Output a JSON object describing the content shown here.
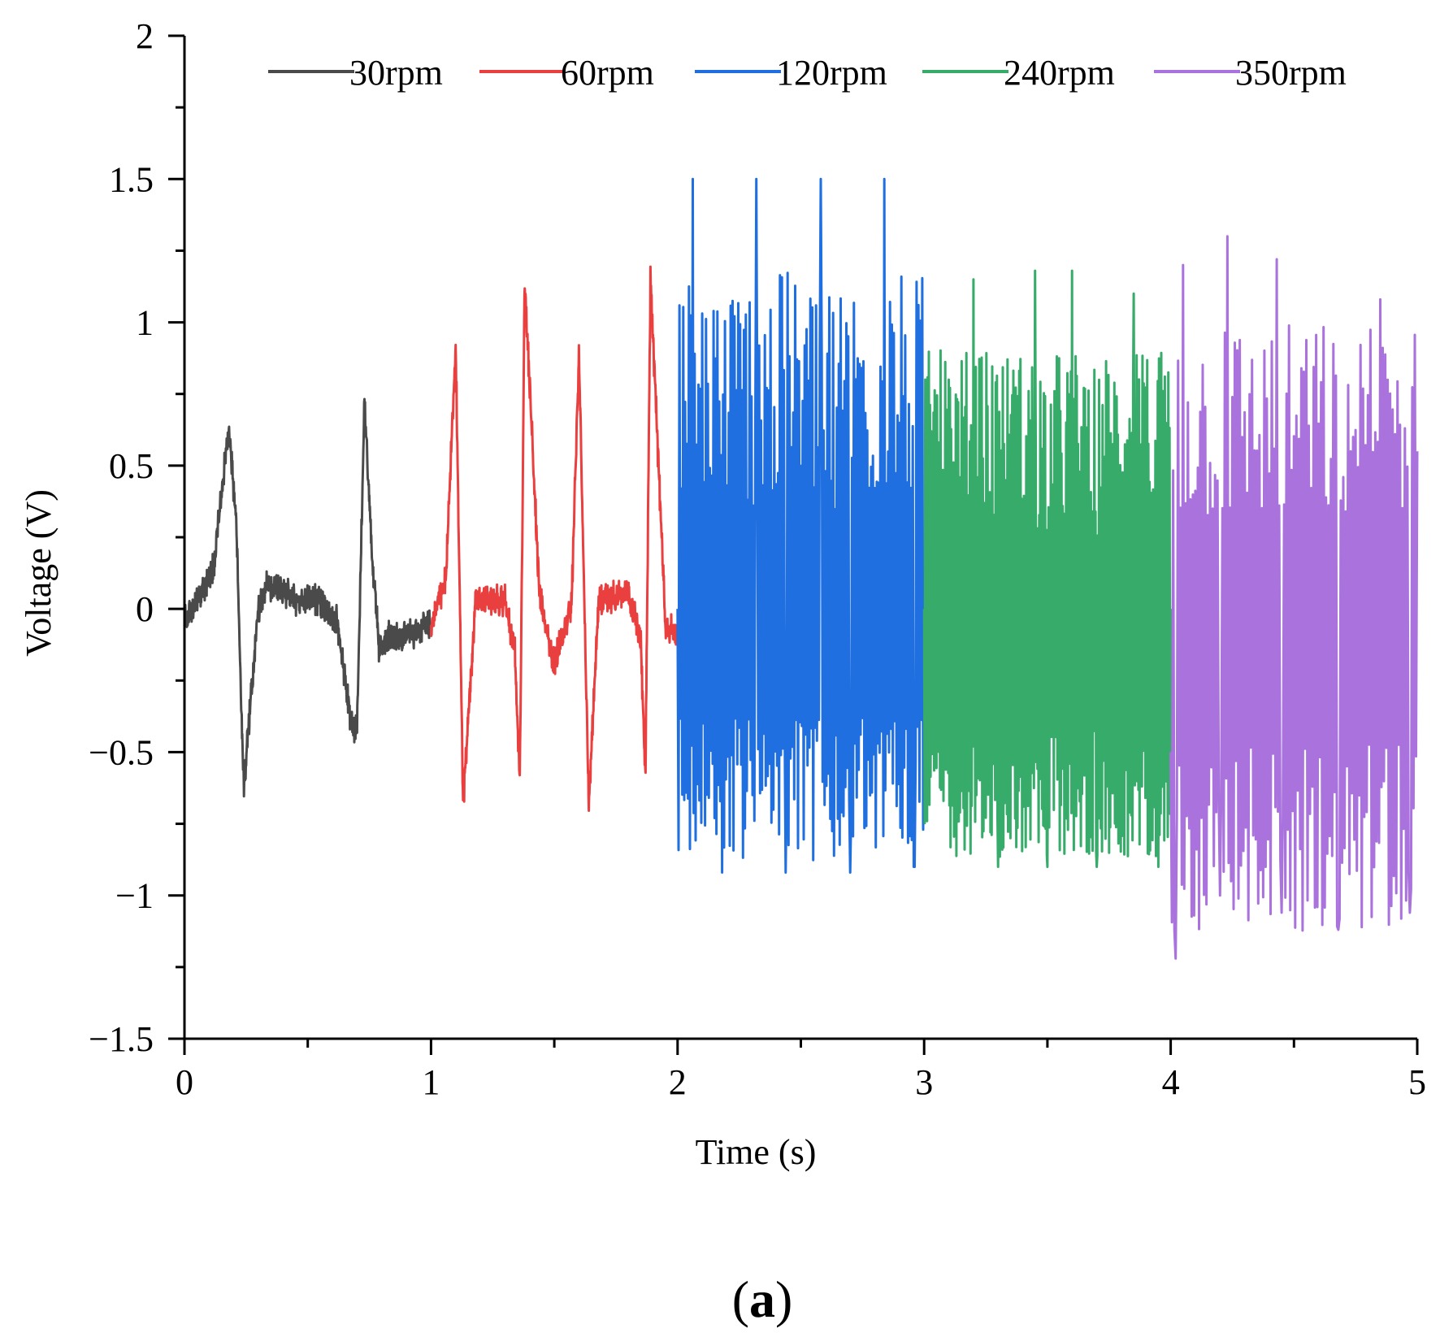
{
  "chart_data": {
    "type": "line",
    "title": "",
    "panel_label_open": "(",
    "panel_label_letter": "a",
    "panel_label_close": ")",
    "xlabel": "Time (s)",
    "ylabel": "Voltage (V)",
    "xlim": [
      0,
      5
    ],
    "ylim": [
      -1.5,
      2
    ],
    "x_ticks": [
      0,
      1,
      2,
      3,
      4,
      5
    ],
    "x_tick_labels": [
      "0",
      "1",
      "2",
      "3",
      "4",
      "5"
    ],
    "y_ticks": [
      -1.5,
      -1,
      -0.5,
      0,
      0.5,
      1,
      1.5,
      2
    ],
    "y_tick_labels": [
      "−1.5",
      "−1",
      "−0.5",
      "0",
      "0.5",
      "1",
      "1.5",
      "2"
    ],
    "grid": false,
    "legend_position": "top",
    "series": [
      {
        "name": "30rpm",
        "color": "#4a4a4a",
        "t_range": [
          0,
          1
        ],
        "keypoints": [
          [
            0,
            -0.05
          ],
          [
            0.12,
            0.15
          ],
          [
            0.18,
            0.64
          ],
          [
            0.21,
            0.3
          ],
          [
            0.24,
            -0.62
          ],
          [
            0.3,
            0.0
          ],
          [
            0.34,
            0.09
          ],
          [
            0.45,
            0.03
          ],
          [
            0.55,
            0.03
          ],
          [
            0.62,
            -0.05
          ],
          [
            0.68,
            -0.42
          ],
          [
            0.7,
            -0.42
          ],
          [
            0.73,
            0.74
          ],
          [
            0.76,
            0.2
          ],
          [
            0.79,
            -0.15
          ],
          [
            0.82,
            -0.1
          ],
          [
            0.9,
            -0.1
          ],
          [
            1.0,
            -0.05
          ]
        ]
      },
      {
        "name": "60rpm",
        "color": "#ea3f3f",
        "t_range": [
          1,
          2
        ],
        "keypoints": [
          [
            1.0,
            -0.05
          ],
          [
            1.06,
            0.1
          ],
          [
            1.1,
            0.92
          ],
          [
            1.13,
            -0.68
          ],
          [
            1.18,
            0.03
          ],
          [
            1.3,
            0.03
          ],
          [
            1.34,
            -0.15
          ],
          [
            1.36,
            -0.6
          ],
          [
            1.38,
            1.14
          ],
          [
            1.44,
            0.05
          ],
          [
            1.5,
            -0.2
          ],
          [
            1.57,
            0.02
          ],
          [
            1.6,
            0.88
          ],
          [
            1.64,
            -0.68
          ],
          [
            1.68,
            0.03
          ],
          [
            1.8,
            0.05
          ],
          [
            1.85,
            -0.1
          ],
          [
            1.87,
            -0.58
          ],
          [
            1.89,
            1.16
          ],
          [
            1.95,
            -0.05
          ],
          [
            2.0,
            -0.1
          ]
        ]
      },
      {
        "name": "120rpm",
        "color": "#1f6fe0",
        "t_range": [
          2,
          3
        ],
        "keypoints": [
          [
            2.0,
            0.0
          ],
          [
            2.06,
            1.5
          ],
          [
            2.18,
            -0.92
          ],
          [
            2.32,
            1.5
          ],
          [
            2.44,
            -0.92
          ],
          [
            2.58,
            1.5
          ],
          [
            2.7,
            -0.92
          ],
          [
            2.84,
            1.5
          ],
          [
            2.96,
            -0.9
          ],
          [
            3.0,
            0.0
          ]
        ]
      },
      {
        "name": "240rpm",
        "color": "#36ab6a",
        "t_range": [
          3,
          4
        ],
        "keypoints": [
          [
            3.0,
            0.0
          ],
          [
            3.1,
            0.8
          ],
          [
            3.2,
            1.15
          ],
          [
            3.3,
            -0.9
          ],
          [
            3.45,
            1.18
          ],
          [
            3.5,
            -0.9
          ],
          [
            3.6,
            1.18
          ],
          [
            3.7,
            -0.9
          ],
          [
            3.85,
            1.1
          ],
          [
            3.95,
            -0.9
          ],
          [
            4.0,
            0.0
          ]
        ]
      },
      {
        "name": "350rpm",
        "color": "#a972dd",
        "t_range": [
          4,
          5
        ],
        "keypoints": [
          [
            4.0,
            -0.5
          ],
          [
            4.02,
            -1.22
          ],
          [
            4.05,
            1.2
          ],
          [
            4.2,
            -1.0
          ],
          [
            4.23,
            1.3
          ],
          [
            4.43,
            1.22
          ],
          [
            4.45,
            -1.06
          ],
          [
            4.68,
            -1.12
          ],
          [
            4.85,
            1.08
          ],
          [
            4.97,
            -1.06
          ],
          [
            5.0,
            0.55
          ]
        ]
      }
    ]
  }
}
